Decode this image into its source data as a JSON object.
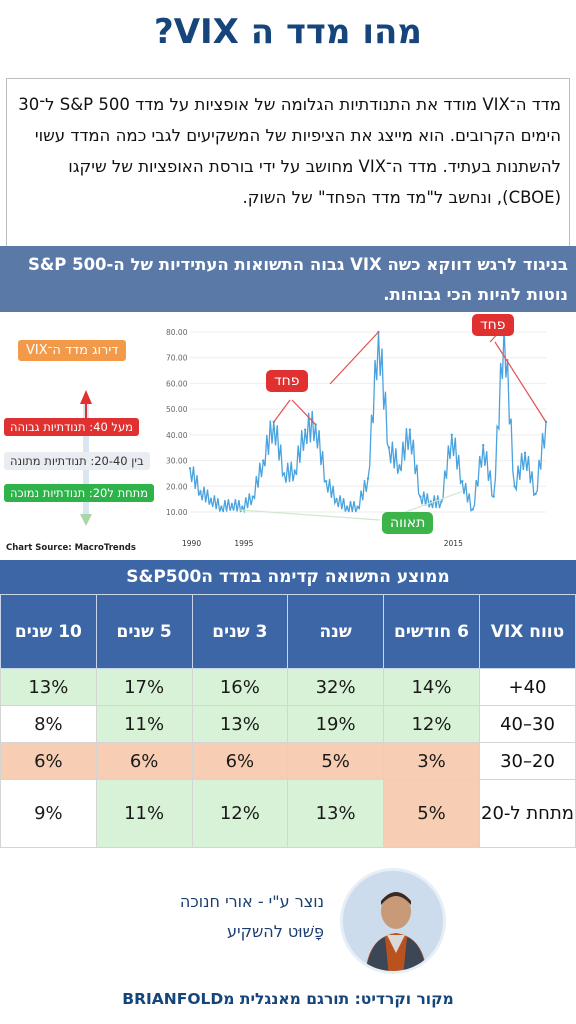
{
  "title": "מהו מדד ה VIX?",
  "intro": "מדד ה־VIX מודד את התנודתיות הגלומה של אופציות על מדד S&P 500 ל־30 הימים הקרובים. הוא מייצג את הציפיות של המשקיעים לגבי כמה המדד עשוי להשתנות בעתיד. מדד ה־VIX מחושב על ידי בורסת האופציות של שיקגו (CBOE), ונחשב ל\"מד מדד הפחד\" של השוק.",
  "banner": "בניגוד לרגש דווקא כשה VIX גבוה התשואות העתידיות של ה-S&P 500 נוטות להיות הכי גבוהות.",
  "legend": {
    "header": "דירוג מדד ה־VIX",
    "high": "מעל 40: תנודתיות גבוהה",
    "mid": "בין 20-40: תנודתיות מתונה",
    "low": "מתחת ל20: תנודתיות נמוכה"
  },
  "callouts": {
    "fear_left": "פחד",
    "fear_right": "פחד",
    "greed": "תאווה"
  },
  "chart_source": "Chart Source: MacroTrends",
  "chart_data": {
    "type": "line",
    "title": "",
    "xlabel": "",
    "ylabel": "",
    "ylim": [
      10,
      80
    ],
    "yticks": [
      "80.00",
      "70.00",
      "60.00",
      "50.00",
      "40.00",
      "30.00",
      "20.00",
      "10.00"
    ],
    "xticks": [
      "1990",
      "1995",
      "2015"
    ],
    "x": [
      1990,
      1991,
      1992,
      1993,
      1994,
      1995,
      1996,
      1997,
      1998,
      1999,
      2000,
      2001,
      2002,
      2003,
      2004,
      2005,
      2006,
      2007,
      2008,
      2009,
      2010,
      2011,
      2012,
      2013,
      2014,
      2015,
      2016,
      2017,
      2018,
      2019,
      2020,
      2021,
      2022,
      2023,
      2024
    ],
    "series": [
      {
        "values": [
          27,
          18,
          15,
          12,
          13,
          12,
          16,
          30,
          45,
          25,
          26,
          42,
          44,
          22,
          15,
          12,
          12,
          23,
          80,
          35,
          28,
          42,
          16,
          14,
          14,
          40,
          22,
          11,
          36,
          16,
          82,
          20,
          33,
          17,
          45
        ]
      }
    ],
    "color": "#4aa3df"
  },
  "table": {
    "title": "ממוצע התשואה קדימה במדד הS&P500",
    "headers": [
      "טווח VIX",
      "6 חודשים",
      "שנה",
      "3 שנים",
      "5 שנים",
      "10 שנים"
    ],
    "rows": [
      [
        "40+",
        "14%",
        "32%",
        "16%",
        "17%",
        "13%"
      ],
      [
        "30–40",
        "12%",
        "19%",
        "13%",
        "11%",
        "8%"
      ],
      [
        "20–30",
        "3%",
        "5%",
        "6%",
        "6%",
        "6%"
      ],
      [
        "מתחת ל-20",
        "5%",
        "13%",
        "12%",
        "11%",
        "9%"
      ]
    ]
  },
  "footer": {
    "credit_line1": "נוצר ע\"י - אורי חנוכה",
    "credit_line2": "פָּשׁוּט להשקיע",
    "source": "מקור וקרדיט: תורגם מאנגלית מBRIANFOLD"
  }
}
